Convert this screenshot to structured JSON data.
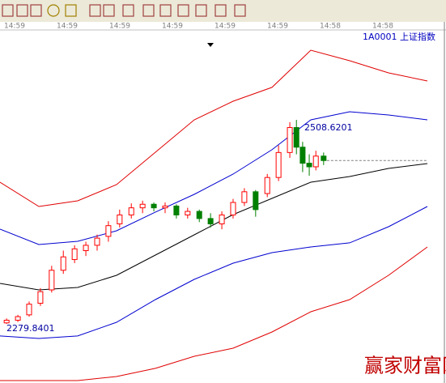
{
  "chart_data": {
    "type": "candlestick",
    "title": "1A0001 上证指数",
    "time_labels": [
      "14:59",
      "14:59",
      "14:59",
      "14:59",
      "14:59",
      "14:59",
      "14:58",
      "14:58"
    ],
    "xlim": [
      0,
      11.48
    ],
    "ylim": [
      2213.6,
      2608.5
    ],
    "up_color": "#ff0000",
    "down_color": "#008000",
    "candles": {
      "x": [
        0.17,
        0.46,
        0.75,
        1.04,
        1.33,
        1.63,
        1.92,
        2.21,
        2.5,
        2.79,
        3.08,
        3.38,
        3.67,
        3.96,
        4.25,
        4.54,
        4.83,
        5.13,
        5.42,
        5.71,
        6,
        6.29,
        6.58,
        6.88,
        7.17,
        7.46,
        7.63,
        7.79,
        7.96,
        8.13,
        8.33
      ],
      "open": [
        2281,
        2284,
        2290,
        2303,
        2318,
        2340,
        2352,
        2362,
        2368,
        2378,
        2392,
        2402,
        2410,
        2414,
        2410,
        2412,
        2402,
        2406,
        2398,
        2392,
        2402,
        2416,
        2428,
        2426,
        2444,
        2472,
        2500,
        2478,
        2460,
        2456,
        2468
      ],
      "high": [
        2286,
        2290,
        2305,
        2320,
        2345,
        2362,
        2368,
        2372,
        2380,
        2395,
        2408,
        2415,
        2418,
        2416,
        2416,
        2414,
        2410,
        2408,
        2404,
        2406,
        2420,
        2432,
        2430,
        2448,
        2480,
        2506,
        2508.6201,
        2484,
        2470,
        2474,
        2472
      ],
      "low": [
        2279.8401,
        2282,
        2288,
        2300,
        2315,
        2336,
        2348,
        2356,
        2362,
        2372,
        2388,
        2398,
        2404,
        2406,
        2404,
        2398,
        2398,
        2394,
        2388,
        2386,
        2398,
        2412,
        2400,
        2422,
        2440,
        2466,
        2470,
        2450,
        2446,
        2452,
        2458
      ],
      "close": [
        2284,
        2288,
        2302,
        2316,
        2340,
        2355,
        2364,
        2368,
        2376,
        2390,
        2402,
        2410,
        2414,
        2410,
        2412,
        2402,
        2406,
        2398,
        2392,
        2402,
        2416,
        2428,
        2408,
        2444,
        2472,
        2500,
        2478,
        2460,
        2456,
        2468,
        2463
      ]
    },
    "bands": {
      "x": [
        0,
        1,
        2,
        3,
        4,
        5,
        6,
        7,
        8,
        9,
        10,
        11
      ],
      "series": [
        {
          "color": "#e00000",
          "values": [
            2438.7,
            2411.5,
            2417.9,
            2436.0,
            2472.3,
            2508.6,
            2529.5,
            2545.0,
            2586.7,
            2574.9,
            2561.3,
            2552.2
          ]
        },
        {
          "color": "#0000d0",
          "values": [
            2386.1,
            2368.8,
            2372.5,
            2384.3,
            2405.2,
            2425.1,
            2447.8,
            2475.1,
            2508.6,
            2517.7,
            2514.1,
            2508.6
          ]
        },
        {
          "color": "#000000",
          "values": [
            2325.3,
            2318.0,
            2320.7,
            2334.3,
            2357.0,
            2379.7,
            2402.4,
            2420.6,
            2438.7,
            2445.1,
            2454.2,
            2459.6
          ]
        },
        {
          "color": "#0000d0",
          "values": [
            2266.3,
            2263.5,
            2266.3,
            2281.7,
            2307.1,
            2329.8,
            2348.0,
            2359.8,
            2366.1,
            2370.7,
            2388.8,
            2411.5
          ]
        },
        {
          "color": "#e00000",
          "values": [
            2216.3,
            2216.3,
            2216.3,
            2220.9,
            2230.0,
            2243.6,
            2252.6,
            2270.8,
            2293.5,
            2307.1,
            2334.3,
            2366.1
          ]
        }
      ]
    },
    "annotations": [
      {
        "value": 2508.6201,
        "label": "2508.6201"
      },
      {
        "value": 2279.8401,
        "label": "2279.8401"
      }
    ],
    "watermark": "赢家财富网"
  }
}
